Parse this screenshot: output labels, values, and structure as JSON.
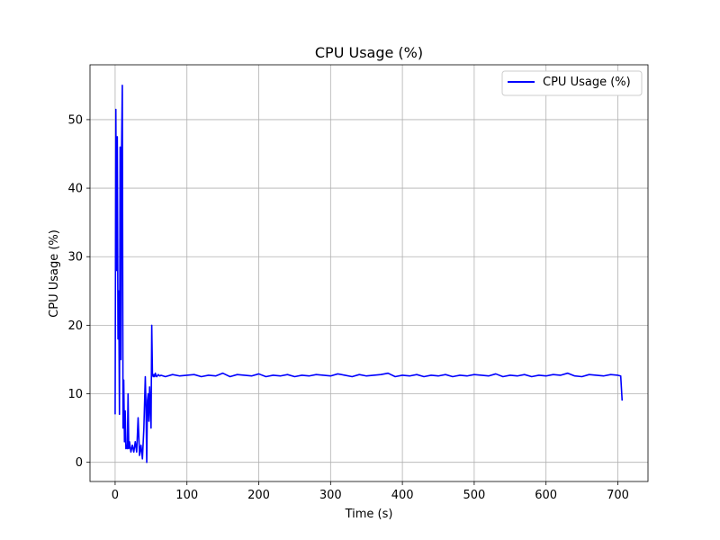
{
  "chart_data": {
    "type": "line",
    "title": "CPU Usage (%)",
    "xlabel": "Time (s)",
    "ylabel": "CPU Usage (%)",
    "xlim": [
      -35,
      742
    ],
    "ylim": [
      -2.8,
      58
    ],
    "xticks": [
      0,
      100,
      200,
      300,
      400,
      500,
      600,
      700
    ],
    "yticks": [
      0,
      10,
      20,
      30,
      40,
      50
    ],
    "grid": true,
    "legend": {
      "position": "top-right",
      "entries": [
        "CPU Usage (%)"
      ]
    },
    "colors": {
      "series": "#0000ff"
    },
    "series": [
      {
        "name": "CPU Usage (%)",
        "x": [
          0,
          1,
          2,
          3,
          4,
          5,
          6,
          7,
          8,
          9,
          10,
          11,
          12,
          13,
          14,
          15,
          16,
          17,
          18,
          19,
          20,
          22,
          24,
          25,
          26,
          28,
          30,
          32,
          34,
          36,
          38,
          40,
          42,
          43,
          44,
          45,
          46,
          47,
          48,
          49,
          50,
          51,
          52,
          53,
          54,
          55,
          56,
          57,
          58,
          60,
          62,
          64,
          70,
          80,
          90,
          100,
          110,
          120,
          130,
          140,
          150,
          160,
          170,
          180,
          190,
          200,
          210,
          220,
          230,
          240,
          250,
          260,
          270,
          280,
          290,
          300,
          310,
          320,
          330,
          340,
          350,
          360,
          370,
          380,
          390,
          400,
          410,
          420,
          430,
          440,
          450,
          460,
          470,
          480,
          490,
          500,
          510,
          520,
          530,
          540,
          550,
          560,
          570,
          580,
          590,
          600,
          610,
          620,
          630,
          640,
          650,
          660,
          670,
          680,
          690,
          700,
          704,
          706
        ],
        "y": [
          7,
          51.5,
          28,
          47.5,
          18,
          25,
          7,
          46,
          15,
          46,
          55,
          5,
          12,
          3,
          7.5,
          2,
          2.5,
          2,
          10,
          2,
          3,
          1.5,
          2.5,
          2,
          1.5,
          3,
          1.5,
          6.5,
          1,
          2.5,
          0.5,
          5,
          12.5,
          8,
          0,
          9,
          10,
          6,
          11,
          8,
          5,
          20,
          12.8,
          12.5,
          12.8,
          12.5,
          13,
          12.6,
          12.5,
          12.8,
          12.6,
          12.7,
          12.5,
          12.8,
          12.6,
          12.7,
          12.8,
          12.5,
          12.7,
          12.6,
          13,
          12.5,
          12.8,
          12.7,
          12.6,
          12.9,
          12.5,
          12.7,
          12.6,
          12.8,
          12.5,
          12.7,
          12.6,
          12.8,
          12.7,
          12.6,
          12.9,
          12.7,
          12.5,
          12.8,
          12.6,
          12.7,
          12.8,
          13,
          12.5,
          12.7,
          12.6,
          12.8,
          12.5,
          12.7,
          12.6,
          12.8,
          12.5,
          12.7,
          12.6,
          12.8,
          12.7,
          12.6,
          12.9,
          12.5,
          12.7,
          12.6,
          12.8,
          12.5,
          12.7,
          12.6,
          12.8,
          12.7,
          13,
          12.6,
          12.5,
          12.8,
          12.7,
          12.6,
          12.8,
          12.7,
          12.6,
          9
        ]
      }
    ]
  }
}
